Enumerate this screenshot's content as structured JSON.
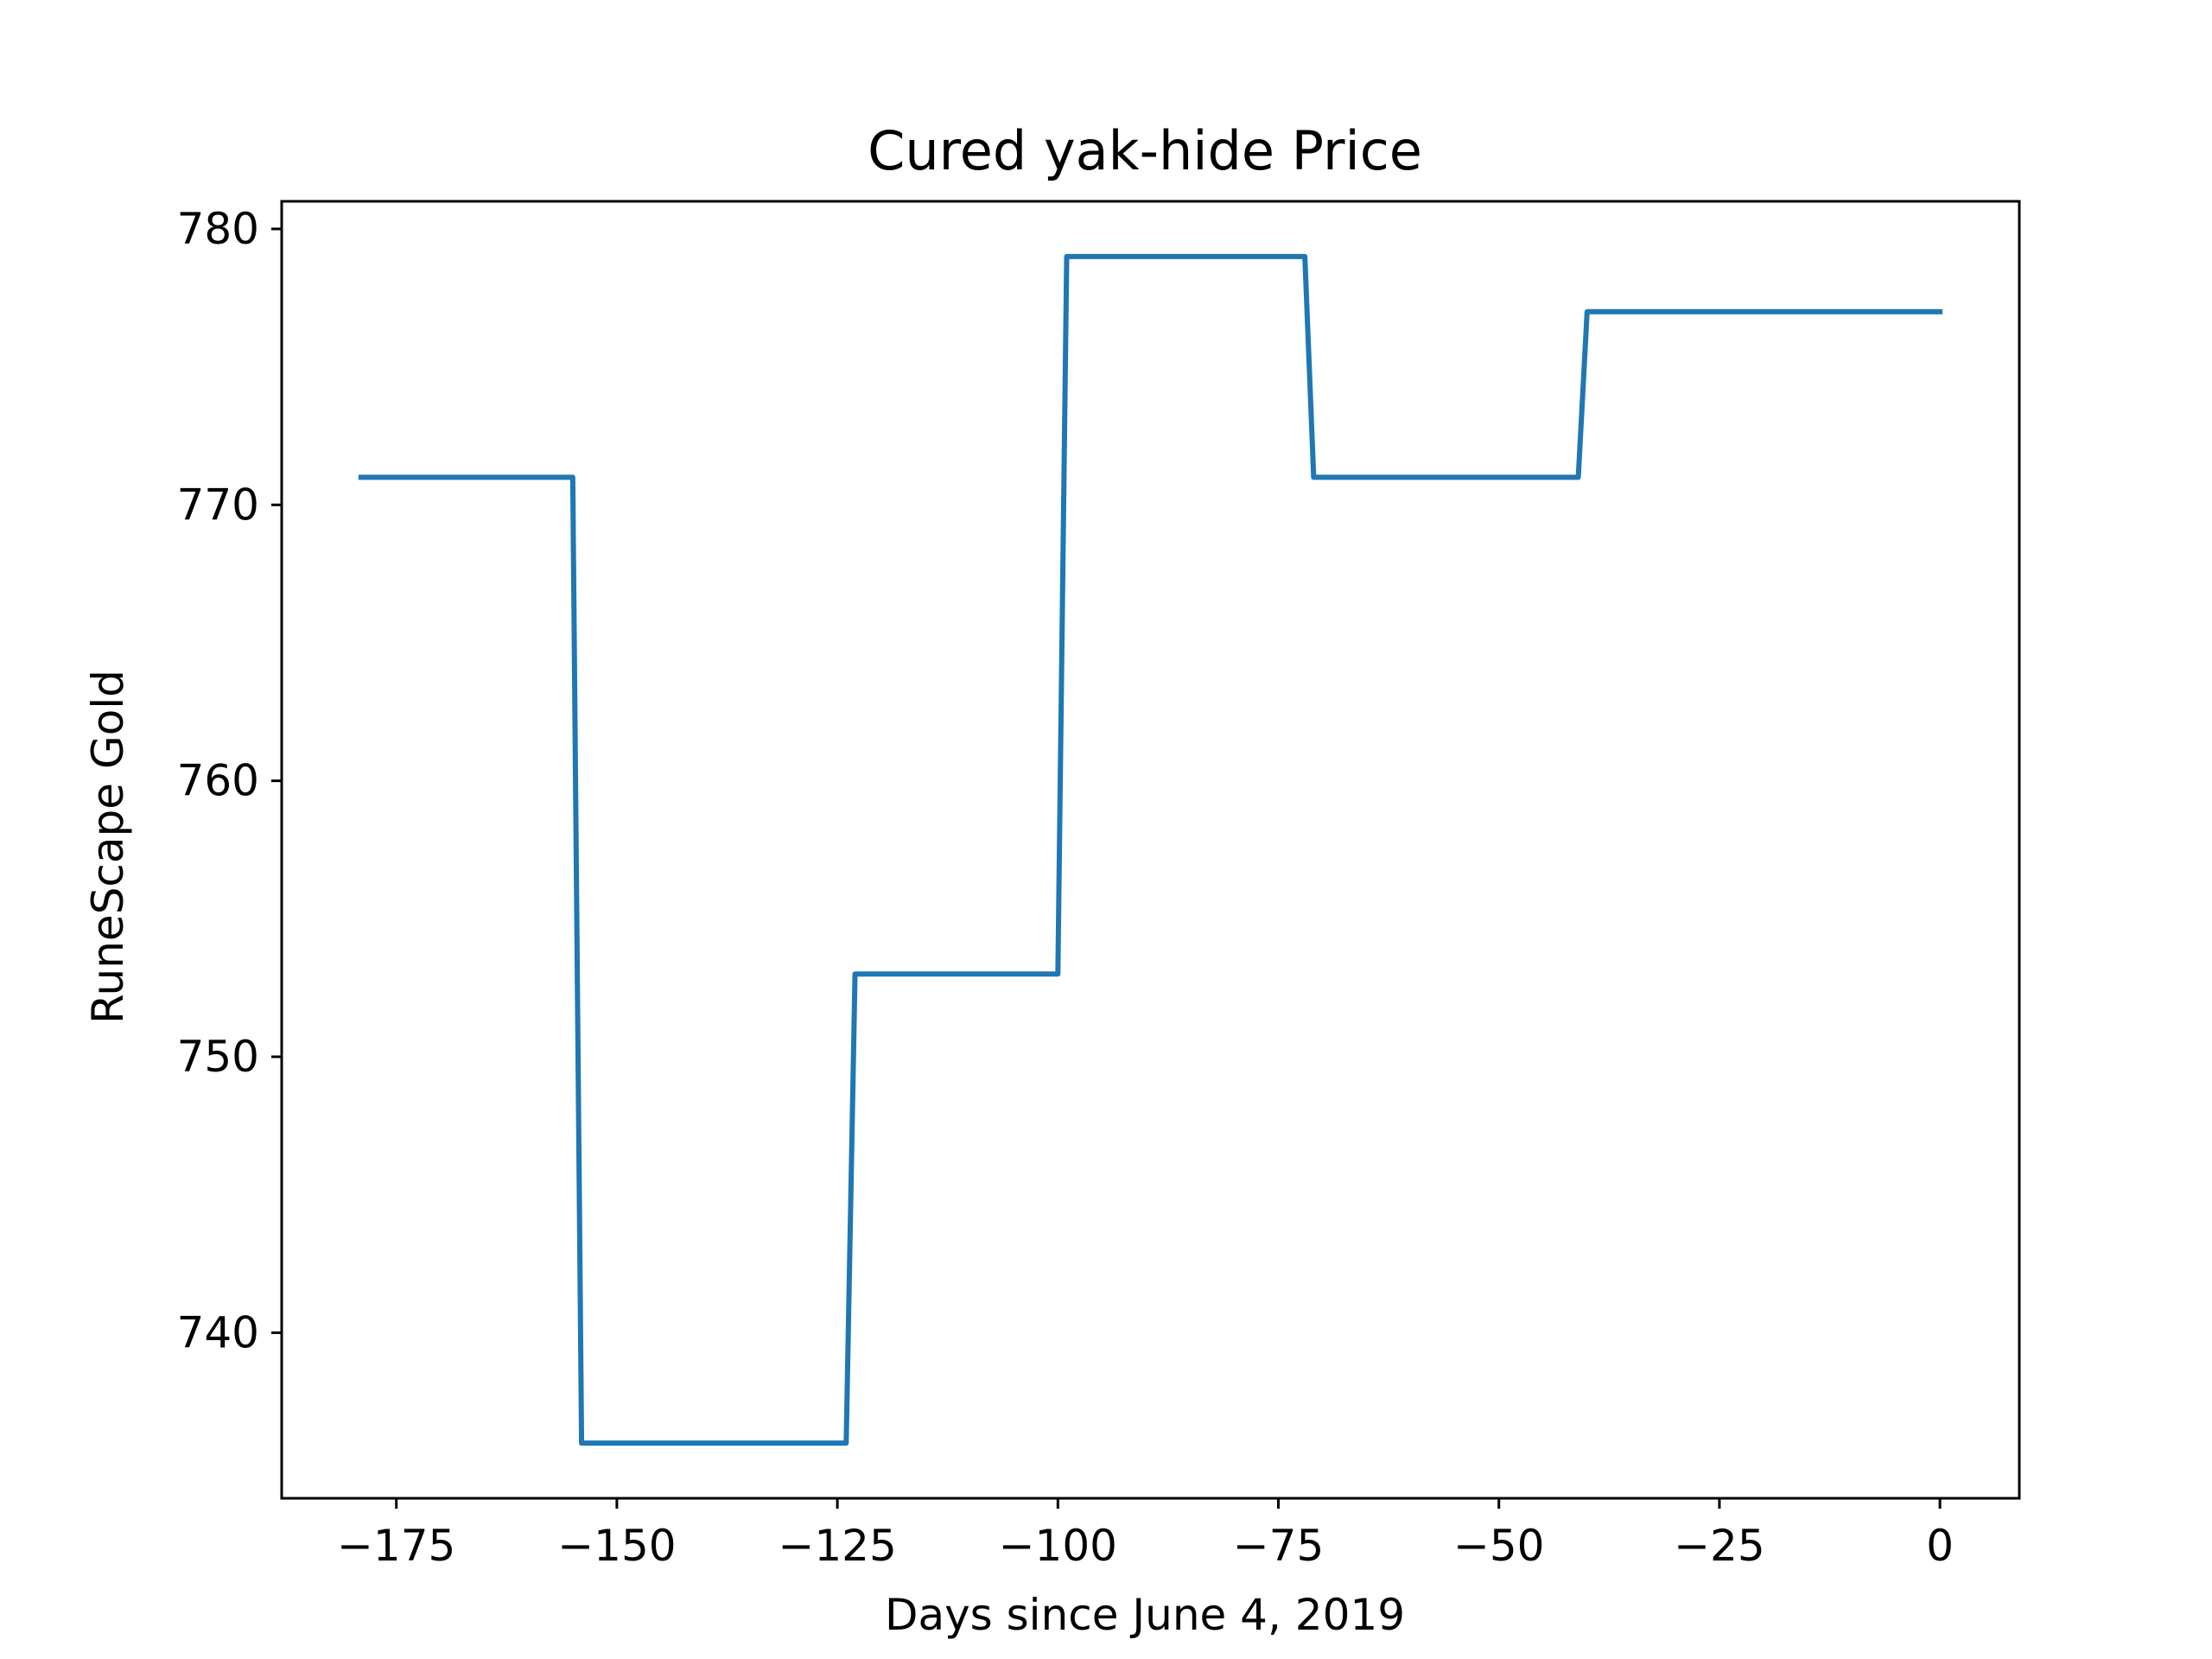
{
  "chart_data": {
    "type": "line",
    "title": "Cured yak-hide Price",
    "xlabel": "Days since June 4, 2019",
    "ylabel": "RuneScape Gold",
    "xlim": [
      -188,
      9
    ],
    "ylim": [
      734,
      781
    ],
    "xticks": [
      -175,
      -150,
      -125,
      -100,
      -75,
      -50,
      -25,
      0
    ],
    "xtick_labels": [
      "−175",
      "−150",
      "−125",
      "−100",
      "−75",
      "−50",
      "−25",
      "0"
    ],
    "yticks": [
      740,
      750,
      760,
      770,
      780
    ],
    "ytick_labels": [
      "740",
      "750",
      "760",
      "770",
      "780"
    ],
    "grid": false,
    "series": [
      {
        "color": "#1f77b4",
        "x": [
          -179,
          -155,
          -154,
          -124,
          -123,
          -100,
          -99,
          -72,
          -71,
          -41,
          -40,
          0
        ],
        "y": [
          771,
          771,
          736,
          736,
          753,
          753,
          779,
          779,
          771,
          771,
          777,
          777
        ]
      }
    ]
  }
}
